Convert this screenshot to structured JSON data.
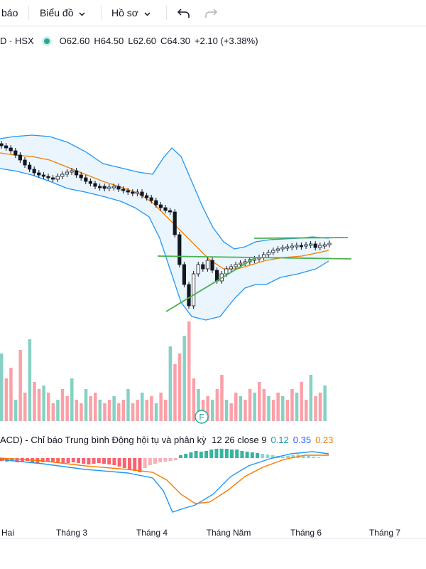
{
  "toolbar": {
    "item1": "báo",
    "item2": "Biểu đồ",
    "item3": "Hồ sơ",
    "undo_icon": "undo-icon",
    "redo_icon": "redo-icon"
  },
  "legend": {
    "symbol": "D · HSX",
    "open": "O62.60",
    "high": "H64.50",
    "low": "L62.60",
    "close": "C64.30",
    "change": "+2.10 (+3.38%)"
  },
  "macd": {
    "title": "ACD) - Chỉ báo Trung bình Động hội tụ và phân kỳ",
    "params": "12 26 close 9",
    "hist": "0.12",
    "macd": "0.35",
    "signal": "0.23"
  },
  "earnings_marker": "F",
  "x_axis": [
    "Hai",
    "Tháng 3",
    "Tháng 4",
    "Tháng Năm",
    "Tháng 6",
    "Tháng 7"
  ],
  "colors": {
    "up": "#22ab94",
    "down": "#f7525f",
    "bollinger": "#2196f3",
    "ma": "#f57c00",
    "trend": "#4caf50"
  }
}
